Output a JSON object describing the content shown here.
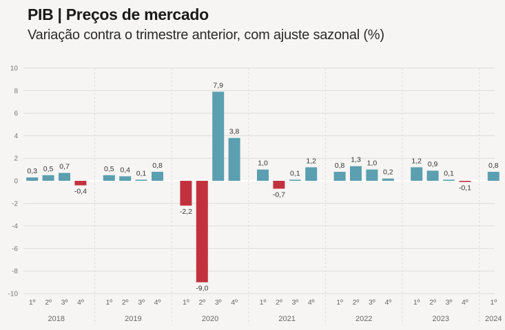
{
  "header": {
    "title": "PIB | Preços de mercado",
    "subtitle": "Variação contra o trimestre anterior, com ajuste sazonal (%)"
  },
  "colors": {
    "positive": "#5b9fb0",
    "negative": "#c2323e",
    "grid": "#dedcd8",
    "zero": "#ffffff"
  },
  "chart_data": {
    "type": "bar",
    "ylim": [
      -10,
      10
    ],
    "yticks": [
      10,
      8,
      6,
      4,
      2,
      0,
      -2,
      -4,
      -6,
      -8,
      -10
    ],
    "ytick_labels": [
      "10",
      "8",
      "6",
      "4",
      "2",
      "0",
      "-2",
      "-4",
      "-6",
      "-8",
      "-10"
    ],
    "grid": true,
    "years": [
      {
        "label": "2018",
        "quarters": [
          "1º",
          "2º",
          "3º",
          "4º"
        ],
        "values": [
          0.3,
          0.5,
          0.7,
          -0.4
        ],
        "value_labels": [
          "0,3",
          "0,5",
          "0,7",
          "-0,4"
        ]
      },
      {
        "label": "2019",
        "quarters": [
          "1º",
          "2º",
          "3º",
          "4º"
        ],
        "values": [
          0.5,
          0.4,
          0.1,
          0.8
        ],
        "value_labels": [
          "0,5",
          "0,4",
          "0,1",
          "0,8"
        ]
      },
      {
        "label": "2020",
        "quarters": [
          "1º",
          "2º",
          "3º",
          "4º"
        ],
        "values": [
          -2.2,
          -9.0,
          7.9,
          3.8
        ],
        "value_labels": [
          "-2,2",
          "-9,0",
          "7,9",
          "3,8"
        ]
      },
      {
        "label": "2021",
        "quarters": [
          "1º",
          "2º",
          "3º",
          "4º"
        ],
        "values": [
          1.0,
          -0.7,
          0.1,
          1.2
        ],
        "value_labels": [
          "1,0",
          "-0,7",
          "0,1",
          "1,2"
        ]
      },
      {
        "label": "2022",
        "quarters": [
          "1º",
          "2º",
          "3º",
          "4º"
        ],
        "values": [
          0.8,
          1.3,
          1.0,
          0.2
        ],
        "value_labels": [
          "0,8",
          "1,3",
          "1,0",
          "0,2"
        ]
      },
      {
        "label": "2023",
        "quarters": [
          "1º",
          "2º",
          "3º",
          "4º"
        ],
        "values": [
          1.2,
          0.9,
          0.1,
          -0.1
        ],
        "value_labels": [
          "1,2",
          "0,9",
          "0,1",
          "-0,1"
        ]
      },
      {
        "label": "2024",
        "quarters": [
          "1º"
        ],
        "values": [
          0.8
        ],
        "value_labels": [
          "0,8"
        ]
      }
    ]
  }
}
